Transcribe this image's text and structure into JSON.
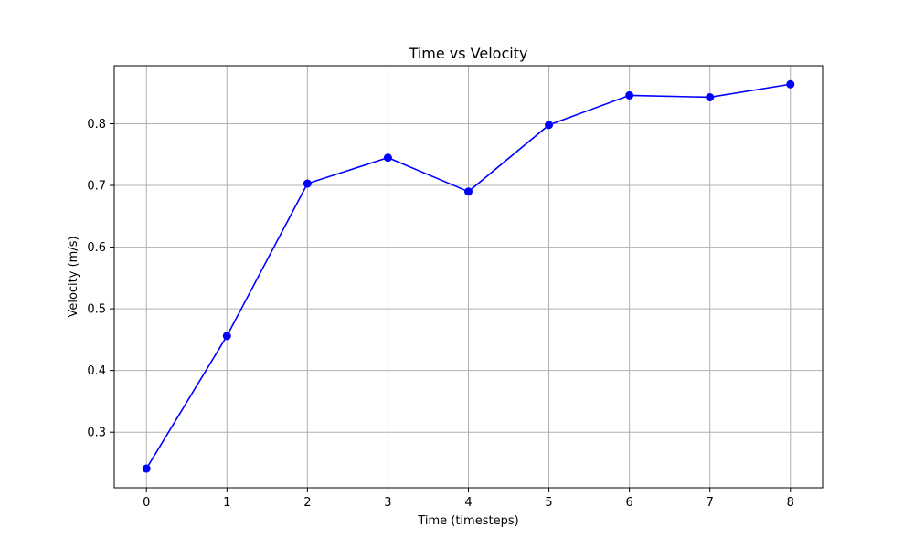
{
  "chart_data": {
    "type": "line",
    "title": "Time vs Velocity",
    "xlabel": "Time (timesteps)",
    "ylabel": "Velocity (m/s)",
    "x": [
      0,
      1,
      2,
      3,
      4,
      5,
      6,
      7,
      8
    ],
    "series": [
      {
        "values": [
          0.241,
          0.456,
          0.703,
          0.745,
          0.69,
          0.798,
          0.846,
          0.843,
          0.864
        ],
        "color": "#0000ff",
        "marker": "circle"
      }
    ],
    "xlim": [
      -0.4,
      8.4
    ],
    "ylim": [
      0.21,
      0.894
    ],
    "xticks": [
      "0",
      "1",
      "2",
      "3",
      "4",
      "5",
      "6",
      "7",
      "8"
    ],
    "yticks": [
      "0.3",
      "0.4",
      "0.5",
      "0.6",
      "0.7",
      "0.8"
    ],
    "grid": true,
    "grid_color": "#b0b0b0",
    "legend": "none"
  }
}
